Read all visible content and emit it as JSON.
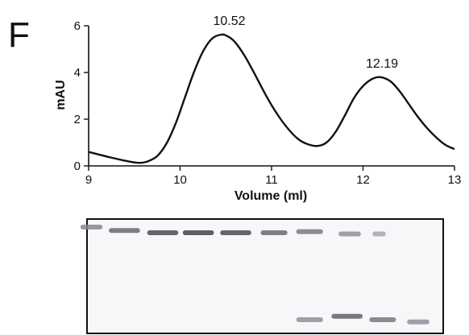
{
  "panel_label": "F",
  "chart_data": {
    "type": "line",
    "title": "",
    "xlabel": "Volume (ml)",
    "ylabel": "mAU",
    "xlim": [
      9,
      13
    ],
    "ylim": [
      0,
      6
    ],
    "x_ticks": [
      9,
      10,
      11,
      12,
      13
    ],
    "y_ticks": [
      0,
      2,
      4,
      6
    ],
    "grid": false,
    "legend": "none",
    "series": [
      {
        "color": "#111111",
        "x": [
          9.0,
          9.2,
          9.4,
          9.55,
          9.65,
          9.75,
          9.85,
          9.95,
          10.05,
          10.15,
          10.25,
          10.35,
          10.45,
          10.52,
          10.6,
          10.7,
          10.8,
          10.9,
          11.0,
          11.1,
          11.2,
          11.3,
          11.4,
          11.5,
          11.6,
          11.7,
          11.8,
          11.9,
          12.0,
          12.1,
          12.19,
          12.3,
          12.4,
          12.5,
          12.6,
          12.7,
          12.8,
          12.9,
          13.0
        ],
        "y": [
          0.6,
          0.4,
          0.22,
          0.13,
          0.2,
          0.42,
          0.95,
          1.8,
          2.9,
          4.0,
          4.9,
          5.45,
          5.62,
          5.55,
          5.3,
          4.75,
          4.05,
          3.3,
          2.6,
          2.0,
          1.5,
          1.12,
          0.92,
          0.85,
          1.0,
          1.45,
          2.15,
          2.9,
          3.42,
          3.72,
          3.8,
          3.62,
          3.2,
          2.65,
          2.1,
          1.62,
          1.22,
          0.9,
          0.72
        ]
      }
    ],
    "annotations": [
      {
        "text": "10.52",
        "x": 10.52,
        "y": 5.62
      },
      {
        "text": "12.19",
        "x": 12.19,
        "y": 3.8
      }
    ]
  },
  "gel": {
    "bands": [
      {
        "x": 9.05,
        "y": 0.07,
        "w": 0.25,
        "t": 0.5
      },
      {
        "x": 9.42,
        "y": 0.1,
        "w": 0.35,
        "t": 0.7
      },
      {
        "x": 9.85,
        "y": 0.12,
        "w": 0.35,
        "t": 0.9
      },
      {
        "x": 10.25,
        "y": 0.12,
        "w": 0.35,
        "t": 0.95
      },
      {
        "x": 10.67,
        "y": 0.12,
        "w": 0.35,
        "t": 0.9
      },
      {
        "x": 11.1,
        "y": 0.12,
        "w": 0.3,
        "t": 0.7
      },
      {
        "x": 11.5,
        "y": 0.11,
        "w": 0.3,
        "t": 0.6
      },
      {
        "x": 11.95,
        "y": 0.13,
        "w": 0.25,
        "t": 0.45
      },
      {
        "x": 12.28,
        "y": 0.13,
        "w": 0.15,
        "t": 0.3
      },
      {
        "x": 11.5,
        "y": 0.88,
        "w": 0.3,
        "t": 0.45
      },
      {
        "x": 11.92,
        "y": 0.85,
        "w": 0.35,
        "t": 0.75
      },
      {
        "x": 12.32,
        "y": 0.88,
        "w": 0.3,
        "t": 0.6
      },
      {
        "x": 12.72,
        "y": 0.9,
        "w": 0.25,
        "t": 0.45
      }
    ]
  }
}
